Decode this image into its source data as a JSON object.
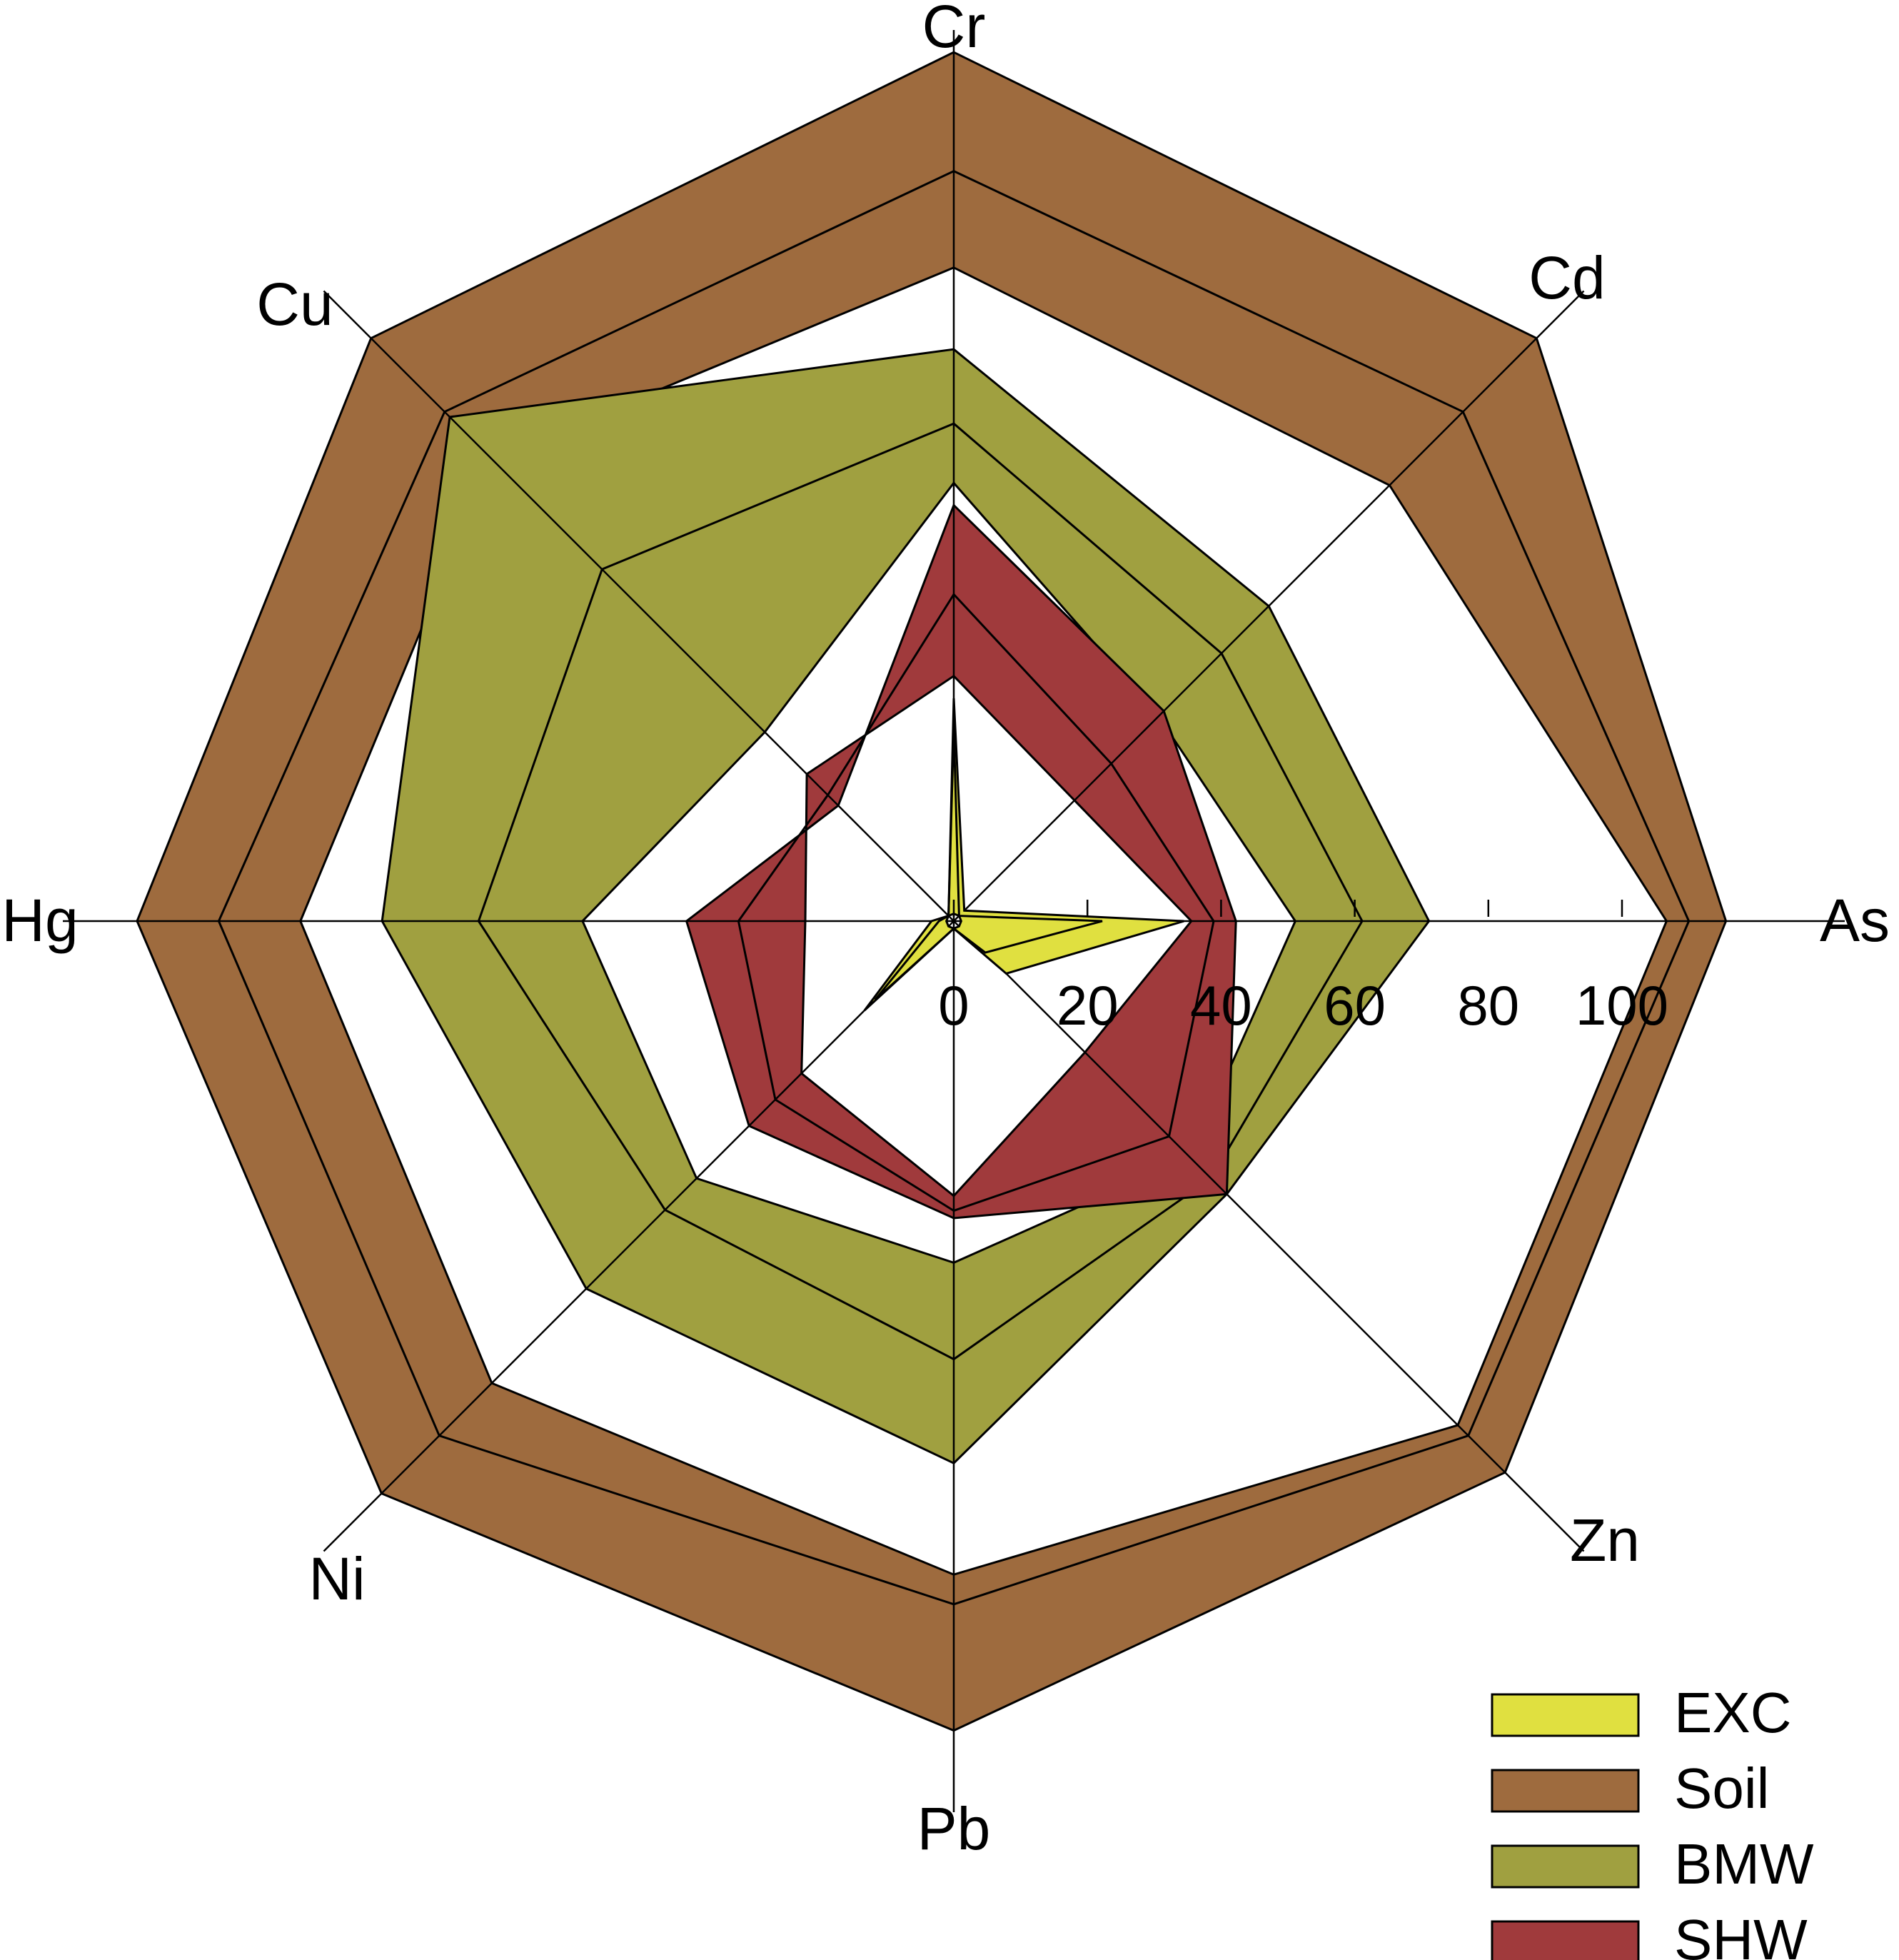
{
  "chart_data": {
    "type": "radar",
    "title": "",
    "categories": [
      "Cr",
      "Cd",
      "As",
      "Zn",
      "Pb",
      "Ni",
      "Hg",
      "Cu"
    ],
    "radial_ticks": [
      "0",
      "20",
      "40",
      "60",
      "80",
      "100"
    ],
    "rlim": [
      0,
      100
    ],
    "grid": false,
    "legend_position": "bottom-right",
    "series": [
      {
        "name": "Soil",
        "color": "#9e6b3e",
        "inner": [
          88,
          83,
          96,
          96,
          88,
          88,
          88,
          88
        ],
        "outer": [
          117,
          111,
          104,
          105,
          109,
          109,
          110,
          111
        ],
        "middle": [
          101,
          97,
          99,
          98,
          92,
          98,
          99,
          97
        ]
      },
      {
        "name": "BMW",
        "color": "#a0a040",
        "inner": [
          59,
          39,
          46,
          45,
          46,
          49,
          50,
          36
        ],
        "outer": [
          77,
          60,
          64,
          52,
          73,
          70,
          77,
          96
        ],
        "middle": [
          67,
          51,
          55,
          49,
          59,
          55,
          64,
          67
        ]
      },
      {
        "name": "SHW",
        "color": "#a03a3c",
        "inner": [
          33,
          23,
          32,
          25,
          37,
          29,
          20,
          28
        ],
        "outer": [
          56,
          40,
          38,
          52,
          40,
          39,
          36,
          22
        ],
        "middle": [
          44,
          30,
          35,
          41,
          39,
          34,
          29,
          24
        ]
      },
      {
        "name": "EXC",
        "color": "#e0e040",
        "inner": [
          1,
          1,
          1,
          1,
          1,
          1,
          1,
          1
        ],
        "outer": [
          30,
          2,
          31,
          10,
          1,
          17,
          3,
          1
        ],
        "middle": [
          26,
          1,
          20,
          6,
          1,
          15,
          2,
          1
        ]
      }
    ],
    "legend_order": [
      "EXC",
      "Soil",
      "BMW",
      "SHW"
    ]
  }
}
